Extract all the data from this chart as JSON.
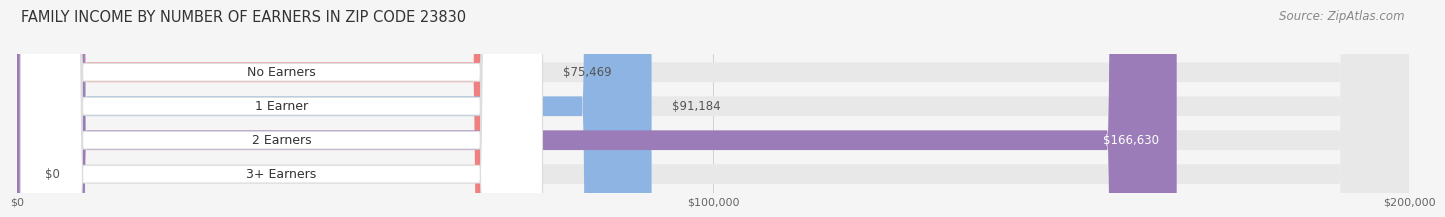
{
  "title": "FAMILY INCOME BY NUMBER OF EARNERS IN ZIP CODE 23830",
  "source": "Source: ZipAtlas.com",
  "categories": [
    "No Earners",
    "1 Earner",
    "2 Earners",
    "3+ Earners"
  ],
  "values": [
    75469,
    91184,
    166630,
    0
  ],
  "bar_colors": [
    "#F08080",
    "#8EB4E3",
    "#9B7BB8",
    "#6ECFCF"
  ],
  "bar_bg_color": "#E8E8E8",
  "xlim": [
    0,
    200000
  ],
  "xticks": [
    0,
    100000,
    200000
  ],
  "xtick_labels": [
    "$0",
    "$100,000",
    "$200,000"
  ],
  "value_labels": [
    "$75,469",
    "$91,184",
    "$166,630",
    "$0"
  ],
  "value_label_colors": [
    "#555555",
    "#555555",
    "#FFFFFF",
    "#555555"
  ],
  "bar_height": 0.58,
  "background_color": "#F5F5F5",
  "title_fontsize": 10.5,
  "source_fontsize": 8.5,
  "label_fontsize": 9,
  "value_fontsize": 8.5
}
